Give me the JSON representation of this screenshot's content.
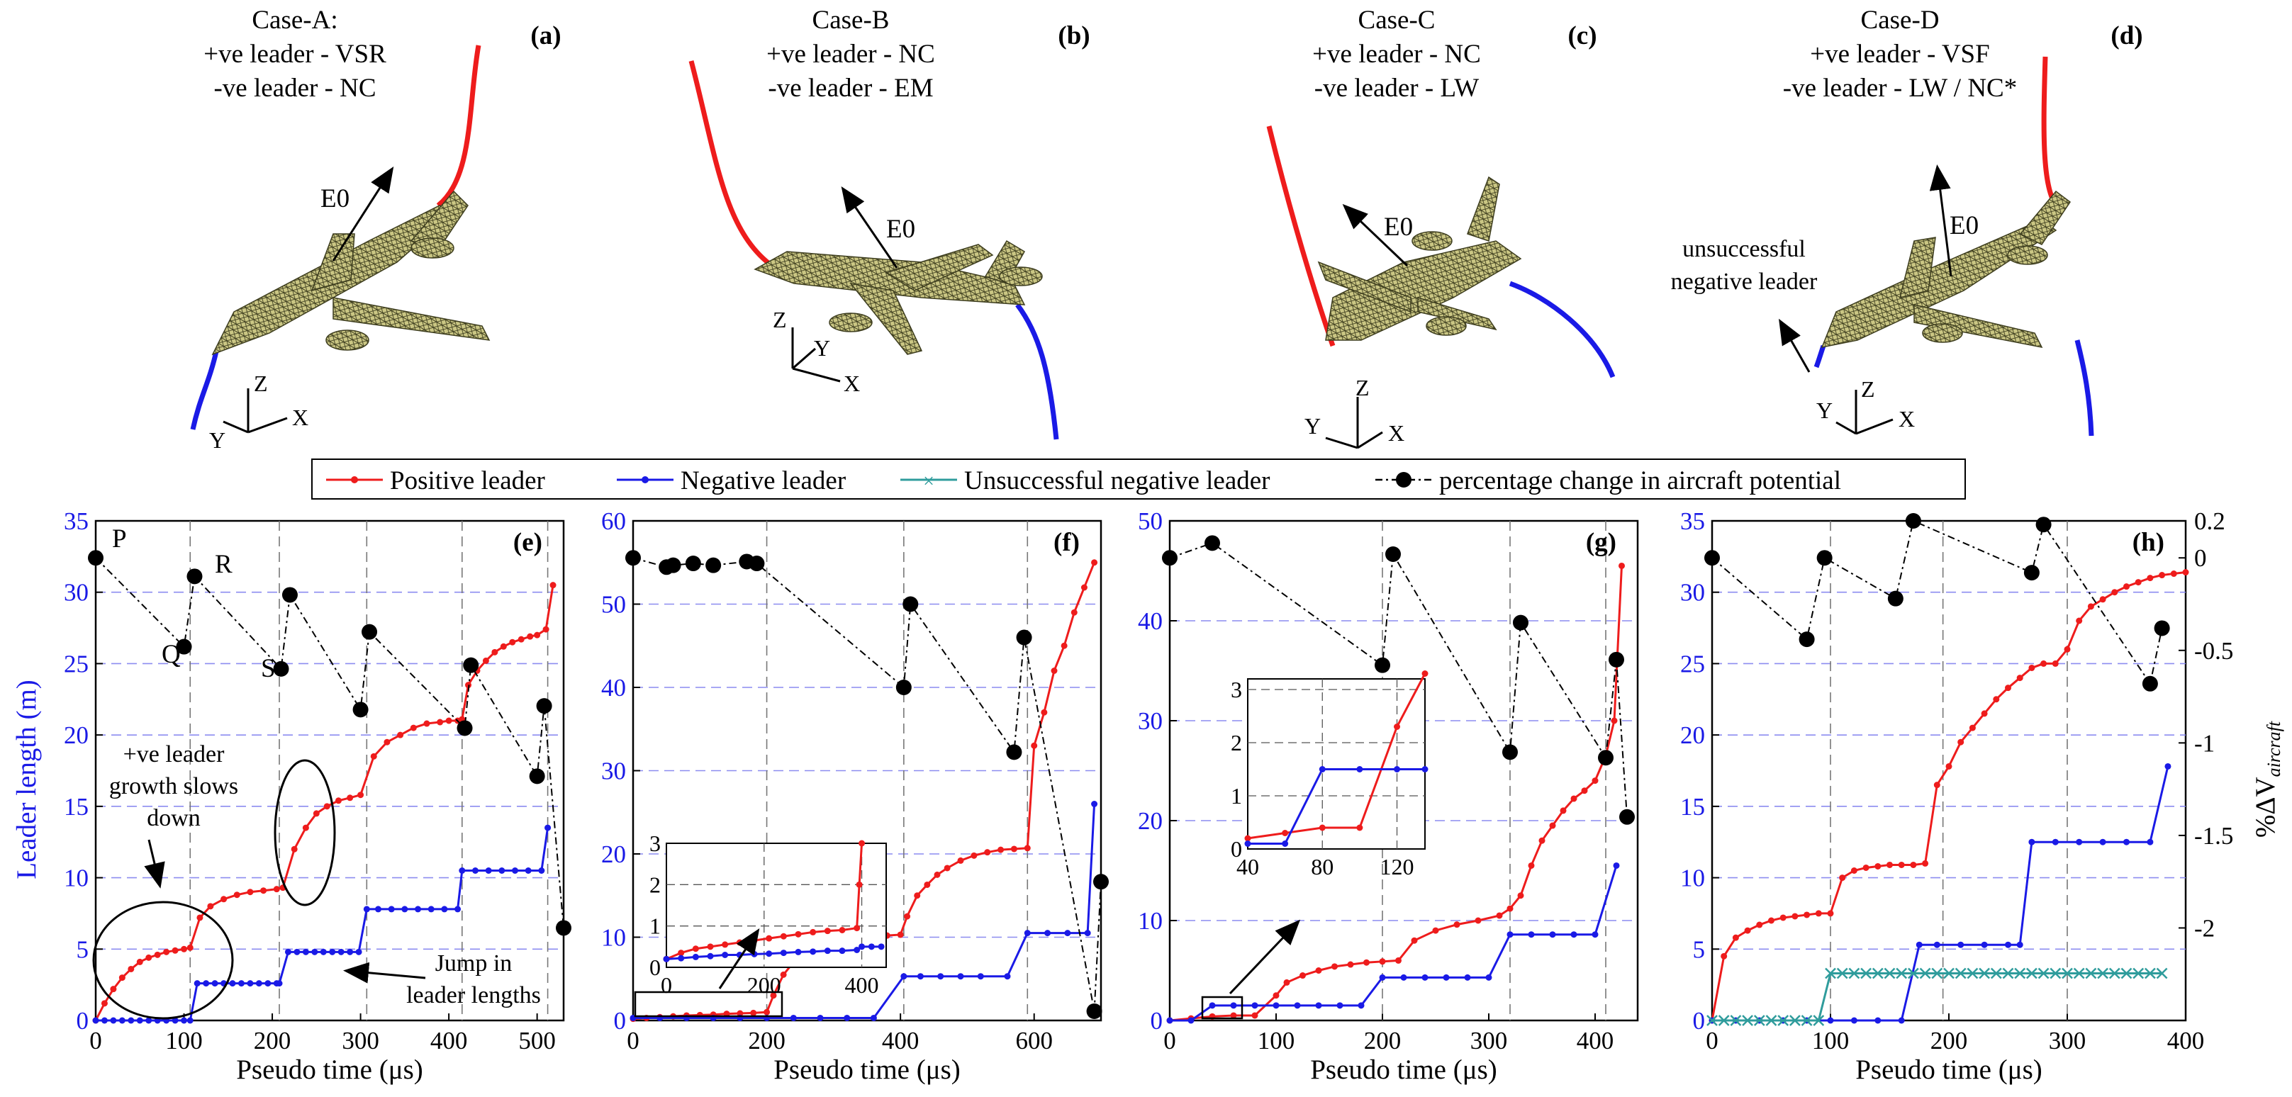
{
  "colors": {
    "positive": "#ee1c1c",
    "negative": "#1a1ae6",
    "unsuccessful": "#2f9c9c",
    "potential": "#000000",
    "grid": "#8c8cf0",
    "axis_blue": "#1a1ae6",
    "aircraft": "#c8c47a"
  },
  "cases": [
    {
      "id": "a",
      "label": "(a)",
      "title": "Case-A:",
      "line1": "+ve leader - VSR",
      "line2": "-ve leader - NC",
      "field": "E0",
      "axes": [
        "Z",
        "Y",
        "X"
      ]
    },
    {
      "id": "b",
      "label": "(b)",
      "title": "Case-B",
      "line1": "+ve leader - NC",
      "line2": "-ve leader - EM",
      "field": "E0",
      "axes": [
        "Z",
        "Y",
        "X"
      ]
    },
    {
      "id": "c",
      "label": "(c)",
      "title": "Case-C",
      "line1": "+ve leader - NC",
      "line2": "-ve leader - LW",
      "field": "E0",
      "axes": [
        "Z",
        "Y",
        "X"
      ]
    },
    {
      "id": "d",
      "label": "(d)",
      "title": "Case-D",
      "line1": "+ve leader - VSF",
      "line2": "-ve leader - LW / NC*",
      "field": "E0",
      "axes": [
        "Z",
        "Y",
        "X"
      ],
      "extra1": "unsuccessful",
      "extra2": "negative leader"
    }
  ],
  "legend": {
    "positive": "Positive leader",
    "negative": "Negative leader",
    "unsuccessful": "Unsuccessful negative leader",
    "potential": "percentage change in aircraft potential"
  },
  "axis": {
    "xlabel": "Pseudo time",
    "xunit": "(μs)",
    "ylabel_left": "Leader length (m)",
    "ylabel_right": "%ΔV",
    "ylabel_right_sub": "aircraft"
  },
  "chart_data": [
    {
      "id": "e",
      "label": "(e)",
      "type": "line",
      "xlim": [
        0,
        530
      ],
      "ylim": [
        0,
        35
      ],
      "xticks": [
        0,
        100,
        200,
        300,
        400,
        500
      ],
      "yticks": [
        0,
        5,
        10,
        15,
        20,
        25,
        30,
        35
      ],
      "vlines": [
        107,
        208,
        307,
        415,
        512
      ],
      "potential_ylim": [
        -2.5,
        0.2
      ],
      "series": [
        {
          "name": "Positive leader",
          "x": [
            0,
            10,
            20,
            30,
            40,
            50,
            60,
            70,
            80,
            90,
            100,
            107,
            118,
            130,
            145,
            160,
            175,
            190,
            205,
            212,
            225,
            238,
            250,
            262,
            275,
            288,
            300,
            315,
            330,
            345,
            360,
            375,
            390,
            400,
            410,
            415,
            422,
            432,
            442,
            452,
            462,
            472,
            482,
            492,
            500,
            510,
            518
          ],
          "y": [
            0,
            1.2,
            2.2,
            3,
            3.6,
            4.1,
            4.4,
            4.6,
            4.8,
            4.9,
            5,
            5.1,
            7.2,
            8,
            8.5,
            8.8,
            9,
            9.1,
            9.2,
            9.3,
            12,
            13.5,
            14.5,
            15,
            15.4,
            15.6,
            15.8,
            18.5,
            19.5,
            20,
            20.5,
            20.8,
            20.9,
            21,
            21,
            21.1,
            23.5,
            24.5,
            25.2,
            25.8,
            26.2,
            26.5,
            26.7,
            26.9,
            27,
            27.4,
            30.5
          ]
        },
        {
          "name": "Negative leader",
          "x": [
            0,
            10,
            20,
            30,
            40,
            50,
            60,
            70,
            80,
            90,
            100,
            107,
            115,
            125,
            135,
            145,
            155,
            165,
            175,
            185,
            195,
            205,
            208,
            218,
            228,
            238,
            248,
            258,
            268,
            278,
            288,
            298,
            307,
            320,
            335,
            350,
            365,
            380,
            395,
            410,
            415,
            430,
            445,
            460,
            475,
            490,
            505,
            512
          ],
          "y": [
            0,
            0,
            0,
            0,
            0,
            0,
            0,
            0,
            0,
            0,
            0,
            0,
            2.6,
            2.6,
            2.6,
            2.6,
            2.6,
            2.6,
            2.6,
            2.6,
            2.6,
            2.6,
            2.6,
            4.8,
            4.8,
            4.8,
            4.8,
            4.8,
            4.8,
            4.8,
            4.8,
            4.8,
            7.8,
            7.8,
            7.8,
            7.8,
            7.8,
            7.8,
            7.8,
            7.8,
            10.5,
            10.5,
            10.5,
            10.5,
            10.5,
            10.5,
            10.5,
            13.5
          ]
        },
        {
          "name": "percentage change in aircraft potential",
          "x": [
            0,
            100,
            112,
            210,
            220,
            300,
            310,
            418,
            425,
            500,
            508,
            530
          ],
          "y": [
            0,
            -0.48,
            -0.1,
            -0.6,
            -0.2,
            -0.82,
            -0.4,
            -0.92,
            -0.58,
            -1.18,
            -0.8,
            -2.0
          ]
        }
      ],
      "annotations": {
        "P": "P",
        "Q": "Q",
        "R": "R",
        "S": "S",
        "slow1": "+ve leader",
        "slow2": "growth slows",
        "slow3": "down",
        "jump1": "Jump in",
        "jump2": "leader lengths"
      }
    },
    {
      "id": "f",
      "label": "(f)",
      "type": "line",
      "xlim": [
        0,
        700
      ],
      "ylim": [
        0,
        60
      ],
      "xticks": [
        0,
        200,
        400,
        600
      ],
      "yticks": [
        0,
        10,
        20,
        30,
        40,
        50,
        60
      ],
      "vlines": [
        200,
        405,
        590
      ],
      "potential_ylim": [
        -2.5,
        0.2
      ],
      "series": [
        {
          "name": "Positive leader",
          "x": [
            0,
            20,
            40,
            60,
            80,
            100,
            120,
            140,
            160,
            180,
            200,
            210,
            225,
            240,
            260,
            280,
            300,
            320,
            340,
            360,
            380,
            400,
            410,
            425,
            440,
            455,
            470,
            490,
            510,
            530,
            550,
            570,
            590,
            600,
            615,
            630,
            645,
            660,
            675,
            690
          ],
          "y": [
            0.2,
            0.3,
            0.4,
            0.5,
            0.6,
            0.65,
            0.7,
            0.8,
            0.85,
            0.9,
            1.0,
            3.0,
            5.5,
            7.0,
            8.3,
            9.0,
            9.5,
            9.8,
            10.0,
            10.1,
            10.2,
            10.3,
            12.5,
            15.0,
            16.3,
            17.5,
            18.3,
            19.2,
            19.8,
            20.2,
            20.5,
            20.6,
            20.7,
            33,
            37,
            42,
            45,
            49,
            52,
            55
          ]
        },
        {
          "name": "Negative leader",
          "x": [
            0,
            40,
            80,
            120,
            160,
            200,
            240,
            280,
            320,
            360,
            405,
            430,
            460,
            490,
            520,
            560,
            590,
            620,
            650,
            680,
            690
          ],
          "y": [
            0.3,
            0.3,
            0.3,
            0.3,
            0.3,
            0.3,
            0.3,
            0.3,
            0.3,
            0.3,
            5.3,
            5.3,
            5.3,
            5.3,
            5.3,
            5.3,
            10.5,
            10.5,
            10.5,
            10.5,
            26
          ]
        },
        {
          "name": "percentage change in aircraft potential",
          "x": [
            0,
            50,
            60,
            90,
            120,
            170,
            185,
            405,
            415,
            570,
            585,
            690,
            700
          ],
          "y": [
            0,
            -0.05,
            -0.04,
            -0.03,
            -0.04,
            -0.02,
            -0.03,
            -0.7,
            -0.25,
            -1.05,
            -0.43,
            -2.45,
            -1.75
          ]
        }
      ],
      "inset": {
        "xlim": [
          0,
          450
        ],
        "ylim": [
          0,
          3
        ],
        "xticks": [
          0,
          200,
          400
        ],
        "yticks": [
          0,
          1,
          2,
          3
        ],
        "pos_x": [
          0,
          30,
          60,
          90,
          120,
          150,
          180,
          210,
          240,
          270,
          300,
          330,
          360,
          390,
          395,
          400
        ],
        "pos_y": [
          0.2,
          0.35,
          0.45,
          0.5,
          0.55,
          0.6,
          0.65,
          0.7,
          0.75,
          0.8,
          0.85,
          0.88,
          0.9,
          0.95,
          2.0,
          3.0
        ],
        "neg_x": [
          0,
          30,
          60,
          90,
          120,
          150,
          180,
          210,
          240,
          270,
          300,
          330,
          360,
          390,
          400,
          420,
          440
        ],
        "neg_y": [
          0.2,
          0.22,
          0.25,
          0.27,
          0.3,
          0.3,
          0.32,
          0.33,
          0.35,
          0.37,
          0.38,
          0.4,
          0.4,
          0.42,
          0.5,
          0.5,
          0.5
        ]
      }
    },
    {
      "id": "g",
      "label": "(g)",
      "type": "line",
      "xlim": [
        0,
        440
      ],
      "ylim": [
        0,
        50
      ],
      "xticks": [
        0,
        100,
        200,
        300,
        400
      ],
      "yticks": [
        0,
        10,
        20,
        30,
        40,
        50
      ],
      "vlines": [
        200,
        320,
        410
      ],
      "potential_ylim": [
        -2.5,
        0.2
      ],
      "series": [
        {
          "name": "Positive leader",
          "x": [
            0,
            20,
            40,
            60,
            80,
            100,
            110,
            125,
            140,
            155,
            170,
            185,
            200,
            215,
            230,
            250,
            270,
            290,
            310,
            320,
            330,
            340,
            350,
            360,
            370,
            380,
            390,
            400,
            410,
            418,
            425
          ],
          "y": [
            0,
            0.2,
            0.4,
            0.5,
            0.5,
            2.5,
            3.8,
            4.5,
            5.0,
            5.4,
            5.6,
            5.8,
            5.9,
            6.0,
            8.0,
            9.0,
            9.6,
            10.0,
            10.5,
            11.2,
            12.5,
            15.5,
            18.0,
            19.5,
            21.0,
            22.2,
            23.0,
            24.0,
            26.5,
            30,
            45.5
          ]
        },
        {
          "name": "Negative leader",
          "x": [
            0,
            20,
            40,
            60,
            80,
            100,
            120,
            140,
            160,
            180,
            200,
            220,
            240,
            260,
            280,
            300,
            320,
            340,
            360,
            380,
            400,
            420
          ],
          "y": [
            0,
            0,
            1.5,
            1.5,
            1.5,
            1.5,
            1.5,
            1.5,
            1.5,
            1.5,
            4.3,
            4.3,
            4.3,
            4.3,
            4.3,
            4.3,
            8.6,
            8.6,
            8.6,
            8.6,
            8.6,
            15.5
          ]
        },
        {
          "name": "percentage change in aircraft potential",
          "x": [
            0,
            40,
            200,
            210,
            320,
            330,
            410,
            420,
            430
          ],
          "y": [
            0,
            0.08,
            -0.58,
            0.02,
            -1.05,
            -0.35,
            -1.08,
            -0.55,
            -1.4
          ]
        }
      ],
      "inset": {
        "xlim": [
          40,
          135
        ],
        "ylim": [
          0,
          3.2
        ],
        "xticks": [
          40,
          80,
          120
        ],
        "yticks": [
          0,
          1,
          2,
          3
        ],
        "pos_x": [
          40,
          60,
          80,
          100,
          120,
          135
        ],
        "pos_y": [
          0.2,
          0.3,
          0.4,
          0.4,
          2.3,
          3.3
        ],
        "neg_x": [
          40,
          60,
          80,
          100,
          120,
          135
        ],
        "neg_y": [
          0.1,
          0.1,
          1.5,
          1.5,
          1.5,
          1.5
        ]
      }
    },
    {
      "id": "h",
      "label": "(h)",
      "type": "line",
      "xlim": [
        0,
        400
      ],
      "ylim": [
        0,
        35
      ],
      "xticks": [
        0,
        100,
        200,
        300,
        400
      ],
      "yticks": [
        0,
        5,
        10,
        15,
        20,
        25,
        30,
        35
      ],
      "vlines": [
        100,
        195,
        300
      ],
      "potential_ylim": [
        -2.5,
        0.2
      ],
      "potential_ticks": [
        0.2,
        0,
        -0.5,
        -1,
        -1.5,
        -2
      ],
      "series": [
        {
          "name": "Positive leader",
          "x": [
            0,
            10,
            20,
            30,
            40,
            50,
            60,
            70,
            80,
            90,
            100,
            110,
            120,
            130,
            140,
            150,
            160,
            170,
            180,
            190,
            200,
            210,
            220,
            230,
            240,
            250,
            260,
            270,
            280,
            290,
            300,
            310,
            320,
            330,
            340,
            350,
            360,
            370,
            380,
            390,
            400
          ],
          "y": [
            0,
            4.5,
            5.8,
            6.3,
            6.7,
            7.0,
            7.2,
            7.3,
            7.4,
            7.5,
            7.5,
            10.0,
            10.5,
            10.7,
            10.8,
            10.9,
            10.9,
            10.9,
            11.0,
            16.5,
            17.8,
            19.5,
            20.5,
            21.5,
            22.5,
            23.3,
            24.0,
            24.7,
            25.0,
            25.0,
            26.0,
            28.0,
            29.0,
            29.5,
            30.0,
            30.4,
            30.7,
            31.0,
            31.2,
            31.3,
            31.4
          ]
        },
        {
          "name": "Negative leader",
          "x": [
            0,
            20,
            40,
            60,
            80,
            100,
            120,
            140,
            160,
            175,
            190,
            210,
            230,
            250,
            260,
            270,
            290,
            310,
            330,
            350,
            370,
            385
          ],
          "y": [
            0,
            0,
            0,
            0,
            0,
            0,
            0,
            0,
            0,
            5.3,
            5.3,
            5.3,
            5.3,
            5.3,
            5.3,
            12.5,
            12.5,
            12.5,
            12.5,
            12.5,
            12.5,
            17.8
          ]
        },
        {
          "name": "Unsuccessful negative leader",
          "x": [
            0,
            10,
            20,
            30,
            40,
            50,
            60,
            70,
            80,
            90,
            100,
            110,
            120,
            130,
            140,
            150,
            160,
            170,
            180,
            190,
            200,
            210,
            220,
            230,
            240,
            250,
            260,
            270,
            280,
            290,
            300,
            310,
            320,
            330,
            340,
            350,
            360,
            370,
            380
          ],
          "y": [
            0,
            0,
            0,
            0,
            0,
            0,
            0,
            0,
            0,
            0,
            3.3,
            3.3,
            3.3,
            3.3,
            3.3,
            3.3,
            3.3,
            3.3,
            3.3,
            3.3,
            3.3,
            3.3,
            3.3,
            3.3,
            3.3,
            3.3,
            3.3,
            3.3,
            3.3,
            3.3,
            3.3,
            3.3,
            3.3,
            3.3,
            3.3,
            3.3,
            3.3,
            3.3,
            3.3
          ]
        },
        {
          "name": "percentage change in aircraft potential",
          "x": [
            0,
            80,
            95,
            155,
            170,
            270,
            280,
            370,
            380
          ],
          "y": [
            0,
            -0.44,
            0,
            -0.22,
            0.2,
            -0.08,
            0.18,
            -0.68,
            -0.38
          ]
        }
      ]
    }
  ]
}
